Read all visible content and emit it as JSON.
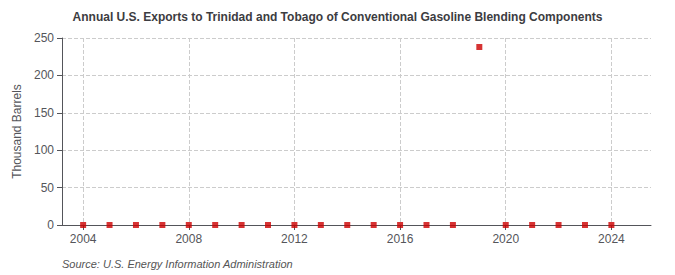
{
  "chart_data": {
    "type": "scatter",
    "title": "Annual U.S. Exports to Trinidad and Tobago of Conventional Gasoline Blending Components",
    "ylabel": "Thousand Barrels",
    "source": "Source: U.S. Energy Information Administration",
    "x": [
      2004,
      2005,
      2006,
      2007,
      2008,
      2009,
      2010,
      2011,
      2012,
      2013,
      2014,
      2015,
      2016,
      2017,
      2018,
      2019,
      2020,
      2021,
      2022,
      2023,
      2024
    ],
    "values": [
      0,
      0,
      0,
      0,
      0,
      0,
      0,
      0,
      0,
      0,
      0,
      0,
      0,
      0,
      0,
      238,
      0,
      0,
      0,
      0,
      0
    ],
    "color": "#cc0000",
    "marker": "square",
    "xlim": [
      2003.2,
      2025.5
    ],
    "xticks": [
      2004,
      2008,
      2012,
      2016,
      2020,
      2024
    ],
    "ylim": [
      0,
      250
    ],
    "yticks": [
      0,
      50,
      100,
      150,
      200,
      250
    ],
    "grid": true
  }
}
